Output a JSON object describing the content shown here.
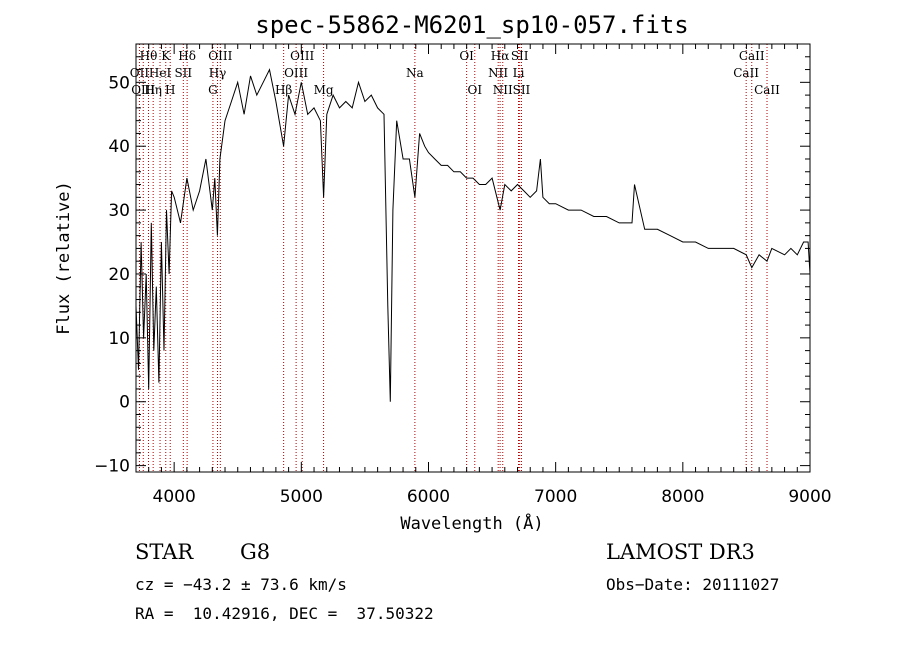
{
  "chart_data": {
    "type": "line",
    "title": "spec-55862-M6201_sp10-057.fits",
    "xlabel": "Wavelength (Å)",
    "ylabel": "Flux (relative)",
    "xlim": [
      3700,
      9000
    ],
    "ylim": [
      -11,
      56
    ],
    "xticks": [
      4000,
      5000,
      6000,
      7000,
      8000,
      9000
    ],
    "yticks": [
      -10,
      0,
      10,
      20,
      30,
      40,
      50
    ],
    "series": [
      {
        "name": "flux",
        "x": [
          3700,
          3720,
          3740,
          3760,
          3780,
          3800,
          3820,
          3840,
          3860,
          3880,
          3900,
          3920,
          3940,
          3960,
          3980,
          4000,
          4050,
          4100,
          4150,
          4200,
          4250,
          4300,
          4320,
          4340,
          4360,
          4400,
          4450,
          4500,
          4550,
          4600,
          4650,
          4700,
          4750,
          4800,
          4861,
          4900,
          4950,
          5000,
          5050,
          5100,
          5150,
          5175,
          5200,
          5250,
          5300,
          5350,
          5400,
          5450,
          5500,
          5550,
          5600,
          5650,
          5680,
          5700,
          5720,
          5750,
          5800,
          5850,
          5893,
          5930,
          5970,
          6000,
          6050,
          6100,
          6150,
          6200,
          6250,
          6300,
          6350,
          6400,
          6450,
          6500,
          6563,
          6600,
          6650,
          6700,
          6750,
          6800,
          6850,
          6880,
          6900,
          6950,
          7000,
          7100,
          7200,
          7300,
          7400,
          7500,
          7600,
          7620,
          7700,
          7800,
          7900,
          8000,
          8100,
          8200,
          8300,
          8400,
          8498,
          8542,
          8600,
          8662,
          8700,
          8800,
          8850,
          8900,
          8950,
          8985,
          9000
        ],
        "values": [
          15,
          5,
          25,
          10,
          20,
          2,
          28,
          8,
          18,
          3,
          25,
          8,
          30,
          20,
          33,
          32,
          28,
          35,
          30,
          33,
          38,
          30,
          35,
          26,
          38,
          44,
          47,
          50,
          45,
          51,
          48,
          50,
          52,
          47,
          40,
          48,
          45,
          50,
          45,
          46,
          44,
          32,
          45,
          48,
          46,
          47,
          46,
          50,
          47,
          48,
          46,
          45,
          15,
          0,
          30,
          44,
          38,
          38,
          32,
          42,
          40,
          39,
          38,
          37,
          37,
          36,
          36,
          35,
          35,
          34,
          34,
          35,
          30,
          34,
          33,
          34,
          33,
          32,
          33,
          38,
          32,
          31,
          31,
          30,
          30,
          29,
          29,
          28,
          28,
          34,
          27,
          27,
          26,
          25,
          25,
          24,
          24,
          24,
          23,
          21,
          23,
          22,
          24,
          23,
          24,
          23,
          25,
          25,
          20
        ]
      }
    ],
    "lines": [
      {
        "label": "Hθ",
        "wave": 3798,
        "row": 0
      },
      {
        "label": "OII",
        "wave": 3727,
        "row": 1
      },
      {
        "label": "OIII",
        "wave": 3757,
        "row": 2
      },
      {
        "label": "Hη",
        "wave": 3835,
        "row": 2
      },
      {
        "label": "HeI",
        "wave": 3889,
        "row": 1
      },
      {
        "label": "K",
        "wave": 3934,
        "row": 0
      },
      {
        "label": "H",
        "wave": 3969,
        "row": 2
      },
      {
        "label": "SII",
        "wave": 4072,
        "row": 1
      },
      {
        "label": "Hδ",
        "wave": 4102,
        "row": 0
      },
      {
        "label": "OIII",
        "wave": 4363,
        "row": 0
      },
      {
        "label": "Hγ",
        "wave": 4341,
        "row": 1
      },
      {
        "label": "G",
        "wave": 4305,
        "row": 2
      },
      {
        "label": "Hβ",
        "wave": 4861,
        "row": 2
      },
      {
        "label": "OIII",
        "wave": 4959,
        "row": 1
      },
      {
        "label": "OIII",
        "wave": 5007,
        "row": 0
      },
      {
        "label": "Mg",
        "wave": 5175,
        "row": 2
      },
      {
        "label": "Na",
        "wave": 5893,
        "row": 1
      },
      {
        "label": "OI",
        "wave": 6300,
        "row": 0
      },
      {
        "label": "OI",
        "wave": 6364,
        "row": 2
      },
      {
        "label": "NII",
        "wave": 6548,
        "row": 1
      },
      {
        "label": "Hα",
        "wave": 6563,
        "row": 0
      },
      {
        "label": "NII",
        "wave": 6584,
        "row": 2
      },
      {
        "label": "SII",
        "wave": 6717,
        "row": 0
      },
      {
        "label": "Li",
        "wave": 6708,
        "row": 1
      },
      {
        "label": "SII",
        "wave": 6731,
        "row": 2
      },
      {
        "label": "CaII",
        "wave": 8498,
        "row": 1
      },
      {
        "label": "CaII",
        "wave": 8542,
        "row": 0
      },
      {
        "label": "CaII",
        "wave": 8662,
        "row": 2
      }
    ],
    "colors": {
      "flux": "#000000",
      "line_marker": "#b00000",
      "axis": "#000000"
    }
  },
  "info": {
    "class_label": "STAR",
    "subclass": "G8",
    "survey": "LAMOST DR3",
    "cz": "cz = −43.2 ± 73.6 km/s",
    "obs_date": "Obs−Date: 20111027",
    "radec": "RA =  10.42916, DEC =  37.50322"
  }
}
